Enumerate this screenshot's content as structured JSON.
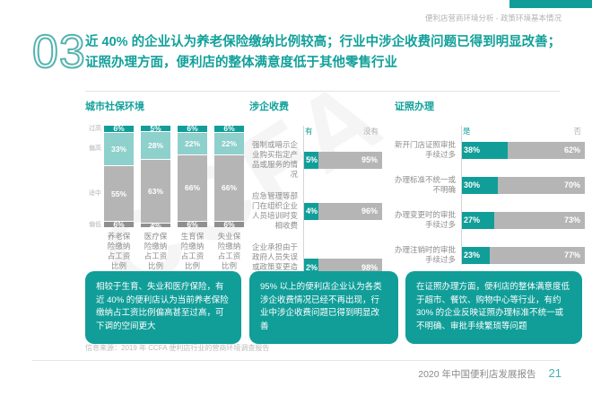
{
  "page": {
    "header_right": "便利店营商环境分析 - 政策环境基本情况",
    "section_number": "03",
    "title_line1": "近 40% 的企业认为养老保险缴纳比例较高；行业中涉企收费问题已得到明显改善；",
    "title_line2": "证照办理方面，便利店的整体满意度低于其他零售行业",
    "source": "信息来源：2019 年 CCFA 便利店行业的营商环境调查报告",
    "footer": "2020 年中国便利店发展报告",
    "page_number": "21",
    "watermark": "CCFA"
  },
  "colors": {
    "teal": "#119e99",
    "teal_light": "#8ed0cc",
    "gray_bar": "#b5b5b5",
    "gray_dark": "#8f8f8f"
  },
  "chart_data": [
    {
      "type": "bar",
      "subtype": "stacked-column",
      "title": "城市社保环境",
      "categories": [
        "养老保险缴纳占工资比例",
        "医疗保险缴纳占工资比例",
        "生育保险缴纳占工资比例",
        "失业保险缴纳占工资比例"
      ],
      "series": [
        {
          "name": "过高",
          "values": [
            6,
            5,
            6,
            6
          ]
        },
        {
          "name": "偏高",
          "values": [
            33,
            28,
            22,
            22
          ]
        },
        {
          "name": "适中",
          "values": [
            55,
            63,
            66,
            66
          ]
        },
        {
          "name": "偏低",
          "values": [
            6,
            4,
            6,
            6
          ]
        }
      ],
      "unit": "%",
      "ylim": [
        0,
        100
      ],
      "grid": false
    },
    {
      "type": "bar",
      "subtype": "horizontal-stacked",
      "title": "涉企收费",
      "legend": [
        "有",
        "没有"
      ],
      "categories": [
        "强制或暗示企业购买指定产品或服务的情况",
        "应急管理等部门在组织企业人员培训时变相收费",
        "企业承担由于政府人员失误或政策变更造成的罚款及滞纳金"
      ],
      "series": [
        {
          "name": "有",
          "values": [
            5,
            4,
            2
          ]
        },
        {
          "name": "没有",
          "values": [
            95,
            96,
            98
          ]
        }
      ],
      "unit": "%",
      "xlim": [
        0,
        100
      ],
      "grid": false
    },
    {
      "type": "bar",
      "subtype": "horizontal-stacked",
      "title": "证照办理",
      "legend": [
        "是",
        "否"
      ],
      "categories": [
        "新开门店证照审批手续过多",
        "办理标准不统一或不明确",
        "办理变更时的审批手续过多",
        "办理注销时的审批手续过多"
      ],
      "series": [
        {
          "name": "是",
          "values": [
            38,
            30,
            27,
            23
          ]
        },
        {
          "name": "否",
          "values": [
            62,
            70,
            73,
            77
          ]
        }
      ],
      "unit": "%",
      "xlim": [
        0,
        100
      ],
      "grid": false
    }
  ],
  "notes": [
    "相较于生育、失业和医疗保险，有近 40% 的便利店认为当前养老保险缴纳占工资比例偏高甚至过高，可下调的空间更大",
    "95% 以上的便利店企业认为各类涉企收费情况已经不再出现，行业中涉企收费问题已得到明显改善",
    "在证照办理方面，便利店的整体满意度低于超市、餐饮、购物中心等行业，有约 30% 的企业反映证照办理标准不统一或不明确、审批手续繁琐等问题"
  ]
}
